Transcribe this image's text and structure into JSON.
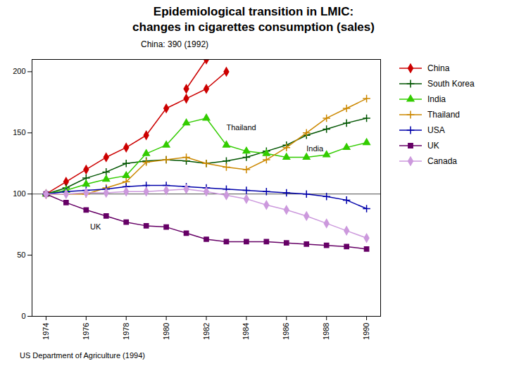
{
  "chart_data": {
    "type": "line",
    "title": "Epidemiological transition in LMIC:",
    "subtitle": "changes in cigarettes consumption (sales)",
    "source": "US Department of Agriculture (1994)",
    "x": [
      1974,
      1975,
      1976,
      1977,
      1978,
      1979,
      1980,
      1981,
      1982,
      1983,
      1984,
      1985,
      1986,
      1987,
      1988,
      1989,
      1990
    ],
    "series": [
      {
        "name": "China",
        "color": "#cc0000",
        "marker": "diamond",
        "values": [
          100,
          110,
          120,
          130,
          138,
          148,
          170,
          178,
          186,
          200,
          null,
          null,
          null,
          null,
          null,
          null,
          null
        ]
      },
      {
        "name": "South Korea",
        "color": "#005500",
        "marker": "plus",
        "values": [
          100,
          105,
          113,
          118,
          125,
          127,
          128,
          127,
          125,
          127,
          130,
          135,
          140,
          148,
          153,
          158,
          162
        ]
      },
      {
        "name": "India",
        "color": "#33cc00",
        "marker": "triangle",
        "values": [
          100,
          103,
          108,
          112,
          115,
          133,
          140,
          158,
          162,
          140,
          135,
          133,
          130,
          130,
          132,
          138,
          142
        ]
      },
      {
        "name": "Thailand",
        "color": "#cc8800",
        "marker": "plus",
        "values": [
          100,
          100,
          100,
          105,
          110,
          126,
          128,
          130,
          125,
          122,
          120,
          128,
          138,
          150,
          162,
          170,
          178
        ]
      },
      {
        "name": "USA",
        "color": "#0000aa",
        "marker": "plus",
        "values": [
          100,
          102,
          103,
          104,
          106,
          107,
          107,
          106,
          105,
          104,
          103,
          102,
          101,
          100,
          98,
          95,
          88
        ]
      },
      {
        "name": "UK",
        "color": "#660066",
        "marker": "square",
        "values": [
          100,
          93,
          87,
          82,
          77,
          74,
          73,
          68,
          63,
          61,
          61,
          61,
          60,
          59,
          58,
          57,
          55
        ]
      },
      {
        "name": "Canada",
        "color": "#cc99dd",
        "marker": "diamond",
        "values": [
          100,
          100,
          101,
          101,
          102,
          102,
          103,
          104,
          102,
          99,
          96,
          91,
          87,
          82,
          76,
          70,
          64
        ]
      }
    ],
    "extra_lines": [
      {
        "series": "China",
        "x": [
          1981,
          1982
        ],
        "values": [
          186,
          210
        ]
      }
    ],
    "hline": 100,
    "annotations": [
      {
        "text": "Thailand",
        "x": 1983,
        "y": 152
      },
      {
        "text": "India",
        "x": 1987,
        "y": 135
      },
      {
        "text": "UK",
        "x": 1976.2,
        "y": 71
      },
      {
        "text": "China: 390 (1992)"
      }
    ],
    "xlim": [
      1973.3,
      1990.7
    ],
    "xticks": [
      1974,
      1976,
      1978,
      1980,
      1982,
      1984,
      1986,
      1988,
      1990
    ],
    "ylim": [
      0,
      210
    ],
    "yticks": [
      0,
      50,
      100,
      150,
      200
    ],
    "grid": false,
    "legend": "right"
  }
}
